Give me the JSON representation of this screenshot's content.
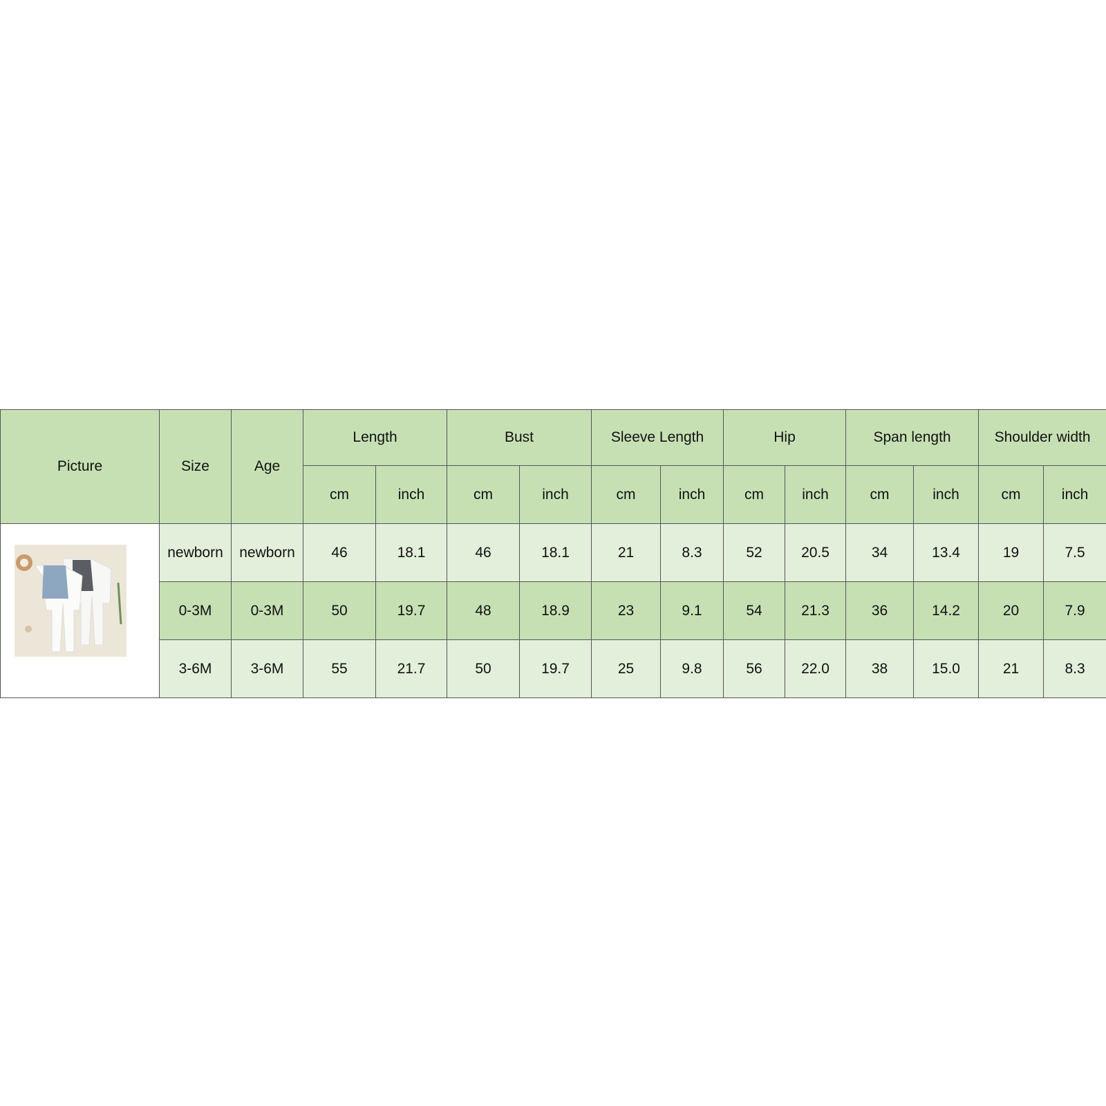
{
  "headers": {
    "picture": "Picture",
    "size": "Size",
    "age": "Age",
    "groups": [
      "Length",
      "Bust",
      "Sleeve Length",
      "Hip",
      "Span length",
      "Shoulder width"
    ],
    "unit_cm": "cm",
    "unit_inch": "inch"
  },
  "colors": {
    "header": "#c6e0b4",
    "row_light": "#e2efda",
    "row_dark": "#c6e0b4"
  },
  "rows": [
    {
      "size": "newborn",
      "age": "newborn",
      "values": [
        "46",
        "18.1",
        "46",
        "18.1",
        "21",
        "8.3",
        "52",
        "20.5",
        "34",
        "13.4",
        "19",
        "7.5"
      ]
    },
    {
      "size": "0-3M",
      "age": "0-3M",
      "values": [
        "50",
        "19.7",
        "48",
        "18.9",
        "23",
        "9.1",
        "54",
        "21.3",
        "36",
        "14.2",
        "20",
        "7.9"
      ]
    },
    {
      "size": "3-6M",
      "age": "3-6M",
      "values": [
        "55",
        "21.7",
        "50",
        "19.7",
        "25",
        "9.8",
        "56",
        "22.0",
        "38",
        "15.0",
        "21",
        "8.3"
      ]
    }
  ]
}
